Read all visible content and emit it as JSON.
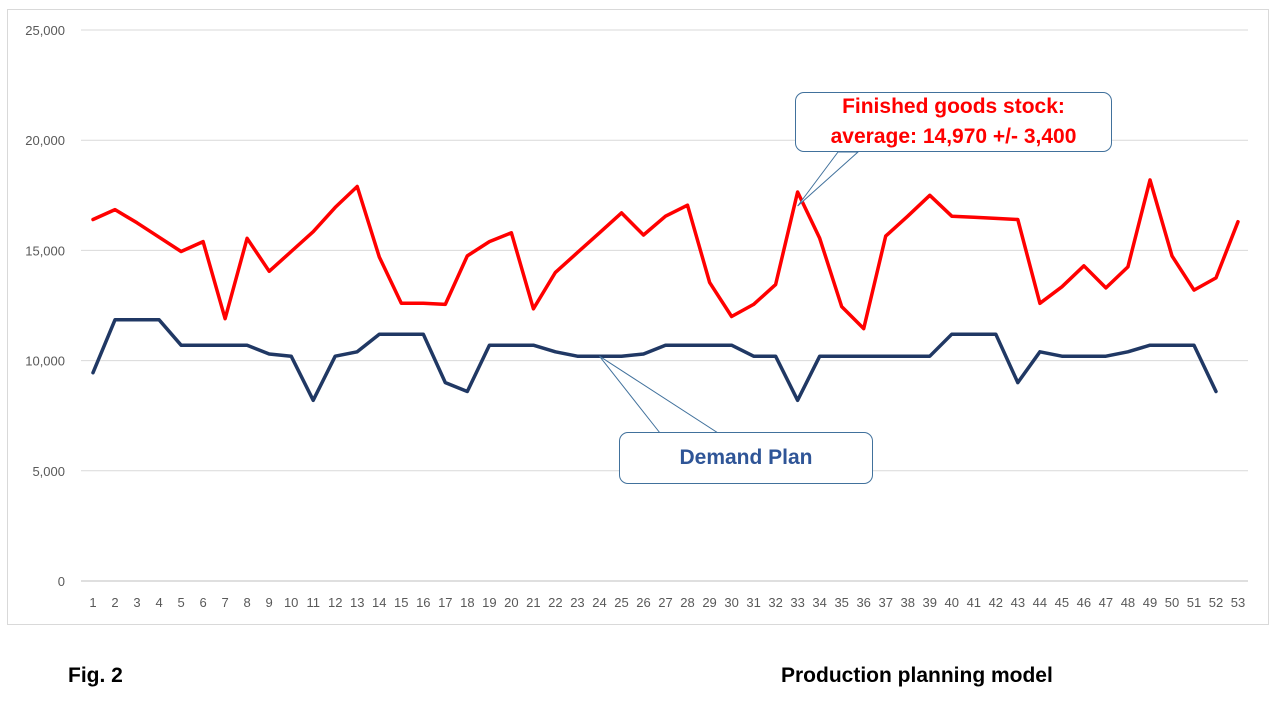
{
  "chart_data": {
    "type": "line",
    "title": "",
    "xlabel": "",
    "ylabel": "",
    "ylim": [
      0,
      25000
    ],
    "yticks": [
      0,
      5000,
      10000,
      15000,
      20000,
      25000
    ],
    "ytick_labels": [
      "0",
      "5,000",
      "10,000",
      "15,000",
      "20,000",
      "25,000"
    ],
    "x": [
      1,
      2,
      3,
      4,
      5,
      6,
      7,
      8,
      9,
      10,
      11,
      12,
      13,
      14,
      15,
      16,
      17,
      18,
      19,
      20,
      21,
      22,
      23,
      24,
      25,
      26,
      27,
      28,
      29,
      30,
      31,
      32,
      33,
      34,
      35,
      36,
      37,
      38,
      39,
      40,
      41,
      42,
      43,
      44,
      45,
      46,
      47,
      48,
      49,
      50,
      51,
      52,
      53
    ],
    "grid": true,
    "legend": "none",
    "series": [
      {
        "key": "stock",
        "color": "#ff0000",
        "values": [
          16400,
          16850,
          16250,
          15600,
          14950,
          15400,
          11900,
          15550,
          14050,
          14950,
          15850,
          16950,
          17900,
          14700,
          12600,
          12600,
          12550,
          14750,
          15400,
          15800,
          12350,
          14000,
          14900,
          15800,
          16700,
          15700,
          16550,
          17050,
          13550,
          12000,
          12550,
          13450,
          17650,
          15550,
          12450,
          11450,
          15650,
          16550,
          17500,
          16550,
          16500,
          16450,
          16400,
          12600,
          13350,
          14300,
          13300,
          14250,
          18200,
          14750,
          13200,
          13750,
          16300
        ]
      },
      {
        "key": "demand",
        "color": "#203864",
        "values": [
          9450,
          11850,
          11850,
          11850,
          10700,
          10700,
          10700,
          10700,
          10300,
          10200,
          8200,
          10200,
          10400,
          11200,
          11200,
          11200,
          9000,
          8600,
          10700,
          10700,
          10700,
          10400,
          10200,
          10200,
          10200,
          10300,
          10700,
          10700,
          10700,
          10700,
          10200,
          10200,
          8200,
          10200,
          10200,
          10200,
          10200,
          10200,
          10200,
          11200,
          11200,
          11200,
          9000,
          10400,
          10200,
          10200,
          10200,
          10400,
          10700,
          10700,
          10700,
          8600,
          null
        ]
      }
    ],
    "annotations": [
      {
        "key": "stock_callout",
        "lines": [
          "Finished goods stock:",
          "average: 14,970 +/- 3,400"
        ],
        "color": "#ff0000",
        "points_to": {
          "series": "stock",
          "x": 33
        }
      },
      {
        "key": "demand_callout",
        "text": "Demand Plan",
        "color": "#2f5597",
        "points_to": {
          "series": "demand",
          "x": 24
        }
      }
    ]
  },
  "caption": {
    "figure_label": "Fig. 2",
    "figure_title": "Production planning model"
  }
}
